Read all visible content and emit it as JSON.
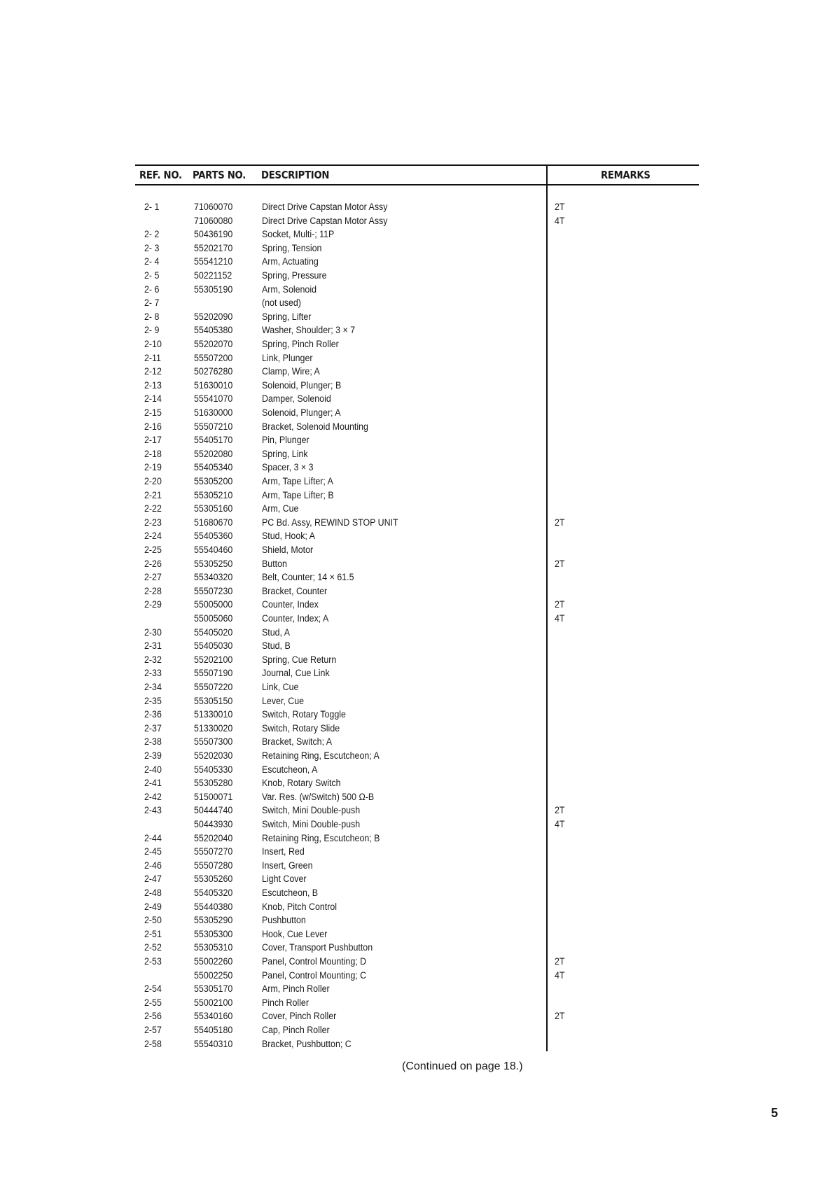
{
  "table": {
    "headers": {
      "ref_no": "REF. NO.",
      "parts_no": "PARTS NO.",
      "description": "DESCRIPTION",
      "remarks": "REMARKS"
    },
    "rows": [
      {
        "ref": "2- 1",
        "part": "71060070",
        "desc": "Direct Drive Capstan Motor Assy",
        "rem": "2T"
      },
      {
        "ref": "",
        "part": "71060080",
        "desc": "Direct Drive Capstan Motor Assy",
        "rem": "4T"
      },
      {
        "ref": "2- 2",
        "part": "50436190",
        "desc": "Socket, Multi-; 11P",
        "rem": ""
      },
      {
        "ref": "2- 3",
        "part": "55202170",
        "desc": "Spring, Tension",
        "rem": ""
      },
      {
        "ref": "2- 4",
        "part": "55541210",
        "desc": "Arm, Actuating",
        "rem": ""
      },
      {
        "ref": "2- 5",
        "part": "50221152",
        "desc": "Spring, Pressure",
        "rem": ""
      },
      {
        "ref": "2- 6",
        "part": "55305190",
        "desc": "Arm, Solenoid",
        "rem": ""
      },
      {
        "ref": "2- 7",
        "part": "",
        "desc": "(not used)",
        "rem": ""
      },
      {
        "ref": "2- 8",
        "part": "55202090",
        "desc": "Spring, Lifter",
        "rem": ""
      },
      {
        "ref": "2- 9",
        "part": "55405380",
        "desc": "Washer, Shoulder; 3 × 7",
        "rem": ""
      },
      {
        "ref": "2-10",
        "part": "55202070",
        "desc": "Spring, Pinch Roller",
        "rem": ""
      },
      {
        "ref": "2-11",
        "part": "55507200",
        "desc": "Link, Plunger",
        "rem": ""
      },
      {
        "ref": "2-12",
        "part": "50276280",
        "desc": "Clamp, Wire; A",
        "rem": ""
      },
      {
        "ref": "2-13",
        "part": "51630010",
        "desc": "Solenoid, Plunger; B",
        "rem": ""
      },
      {
        "ref": "2-14",
        "part": "55541070",
        "desc": "Damper, Solenoid",
        "rem": ""
      },
      {
        "ref": "2-15",
        "part": "51630000",
        "desc": "Solenoid, Plunger; A",
        "rem": ""
      },
      {
        "ref": "2-16",
        "part": "55507210",
        "desc": "Bracket, Solenoid Mounting",
        "rem": ""
      },
      {
        "ref": "2-17",
        "part": "55405170",
        "desc": "Pin, Plunger",
        "rem": ""
      },
      {
        "ref": "2-18",
        "part": "55202080",
        "desc": "Spring, Link",
        "rem": ""
      },
      {
        "ref": "2-19",
        "part": "55405340",
        "desc": "Spacer, 3 × 3",
        "rem": ""
      },
      {
        "ref": "2-20",
        "part": "55305200",
        "desc": "Arm, Tape Lifter; A",
        "rem": ""
      },
      {
        "ref": "2-21",
        "part": "55305210",
        "desc": "Arm, Tape Lifter; B",
        "rem": ""
      },
      {
        "ref": "2-22",
        "part": "55305160",
        "desc": "Arm, Cue",
        "rem": ""
      },
      {
        "ref": "2-23",
        "part": "51680670",
        "desc": "PC Bd. Assy, REWIND STOP UNIT",
        "rem": "2T"
      },
      {
        "ref": "2-24",
        "part": "55405360",
        "desc": "Stud, Hook; A",
        "rem": ""
      },
      {
        "ref": "2-25",
        "part": "55540460",
        "desc": "Shield, Motor",
        "rem": ""
      },
      {
        "ref": "2-26",
        "part": "55305250",
        "desc": "Button",
        "rem": "2T"
      },
      {
        "ref": "2-27",
        "part": "55340320",
        "desc": "Belt, Counter; 14 × 61.5",
        "rem": ""
      },
      {
        "ref": "2-28",
        "part": "55507230",
        "desc": "Bracket, Counter",
        "rem": ""
      },
      {
        "ref": "2-29",
        "part": "55005000",
        "desc": "Counter, Index",
        "rem": "2T"
      },
      {
        "ref": "",
        "part": "55005060",
        "desc": "Counter, Index; A",
        "rem": "4T"
      },
      {
        "ref": "2-30",
        "part": "55405020",
        "desc": "Stud, A",
        "rem": ""
      },
      {
        "ref": "2-31",
        "part": "55405030",
        "desc": "Stud, B",
        "rem": ""
      },
      {
        "ref": "2-32",
        "part": "55202100",
        "desc": "Spring, Cue Return",
        "rem": ""
      },
      {
        "ref": "2-33",
        "part": "55507190",
        "desc": "Journal, Cue Link",
        "rem": ""
      },
      {
        "ref": "2-34",
        "part": "55507220",
        "desc": "Link, Cue",
        "rem": ""
      },
      {
        "ref": "2-35",
        "part": "55305150",
        "desc": "Lever, Cue",
        "rem": ""
      },
      {
        "ref": "2-36",
        "part": "51330010",
        "desc": "Switch, Rotary Toggle",
        "rem": ""
      },
      {
        "ref": "2-37",
        "part": "51330020",
        "desc": "Switch, Rotary Slide",
        "rem": ""
      },
      {
        "ref": "2-38",
        "part": "55507300",
        "desc": "Bracket, Switch; A",
        "rem": ""
      },
      {
        "ref": "2-39",
        "part": "55202030",
        "desc": "Retaining Ring, Escutcheon; A",
        "rem": ""
      },
      {
        "ref": "2-40",
        "part": "55405330",
        "desc": "Escutcheon, A",
        "rem": ""
      },
      {
        "ref": "2-41",
        "part": "55305280",
        "desc": "Knob, Rotary Switch",
        "rem": ""
      },
      {
        "ref": "2-42",
        "part": "51500071",
        "desc": "Var. Res. (w/Switch) 500 Ω-B",
        "rem": ""
      },
      {
        "ref": "2-43",
        "part": "50444740",
        "desc": "Switch, Mini Double-push",
        "rem": "2T"
      },
      {
        "ref": "",
        "part": "50443930",
        "desc": "Switch, Mini Double-push",
        "rem": "4T"
      },
      {
        "ref": "2-44",
        "part": "55202040",
        "desc": "Retaining Ring, Escutcheon; B",
        "rem": ""
      },
      {
        "ref": "2-45",
        "part": "55507270",
        "desc": "Insert, Red",
        "rem": ""
      },
      {
        "ref": "2-46",
        "part": "55507280",
        "desc": "Insert, Green",
        "rem": ""
      },
      {
        "ref": "2-47",
        "part": "55305260",
        "desc": "Light Cover",
        "rem": ""
      },
      {
        "ref": "2-48",
        "part": "55405320",
        "desc": "Escutcheon, B",
        "rem": ""
      },
      {
        "ref": "2-49",
        "part": "55440380",
        "desc": "Knob, Pitch Control",
        "rem": ""
      },
      {
        "ref": "2-50",
        "part": "55305290",
        "desc": "Pushbutton",
        "rem": ""
      },
      {
        "ref": "2-51",
        "part": "55305300",
        "desc": "Hook, Cue Lever",
        "rem": ""
      },
      {
        "ref": "2-52",
        "part": "55305310",
        "desc": "Cover, Transport Pushbutton",
        "rem": ""
      },
      {
        "ref": "2-53",
        "part": "55002260",
        "desc": "Panel, Control Mounting; D",
        "rem": "2T"
      },
      {
        "ref": "",
        "part": "55002250",
        "desc": "Panel, Control Mounting; C",
        "rem": "4T"
      },
      {
        "ref": "2-54",
        "part": "55305170",
        "desc": "Arm, Pinch Roller",
        "rem": ""
      },
      {
        "ref": "2-55",
        "part": "55002100",
        "desc": "Pinch Roller",
        "rem": ""
      },
      {
        "ref": "2-56",
        "part": "55340160",
        "desc": "Cover, Pinch Roller",
        "rem": "2T"
      },
      {
        "ref": "2-57",
        "part": "55405180",
        "desc": "Cap, Pinch Roller",
        "rem": ""
      },
      {
        "ref": "2-58",
        "part": "55540310",
        "desc": "Bracket, Pushbutton; C",
        "rem": ""
      }
    ]
  },
  "footer": {
    "continued": "(Continued on page 18.)",
    "page_number": "5"
  }
}
